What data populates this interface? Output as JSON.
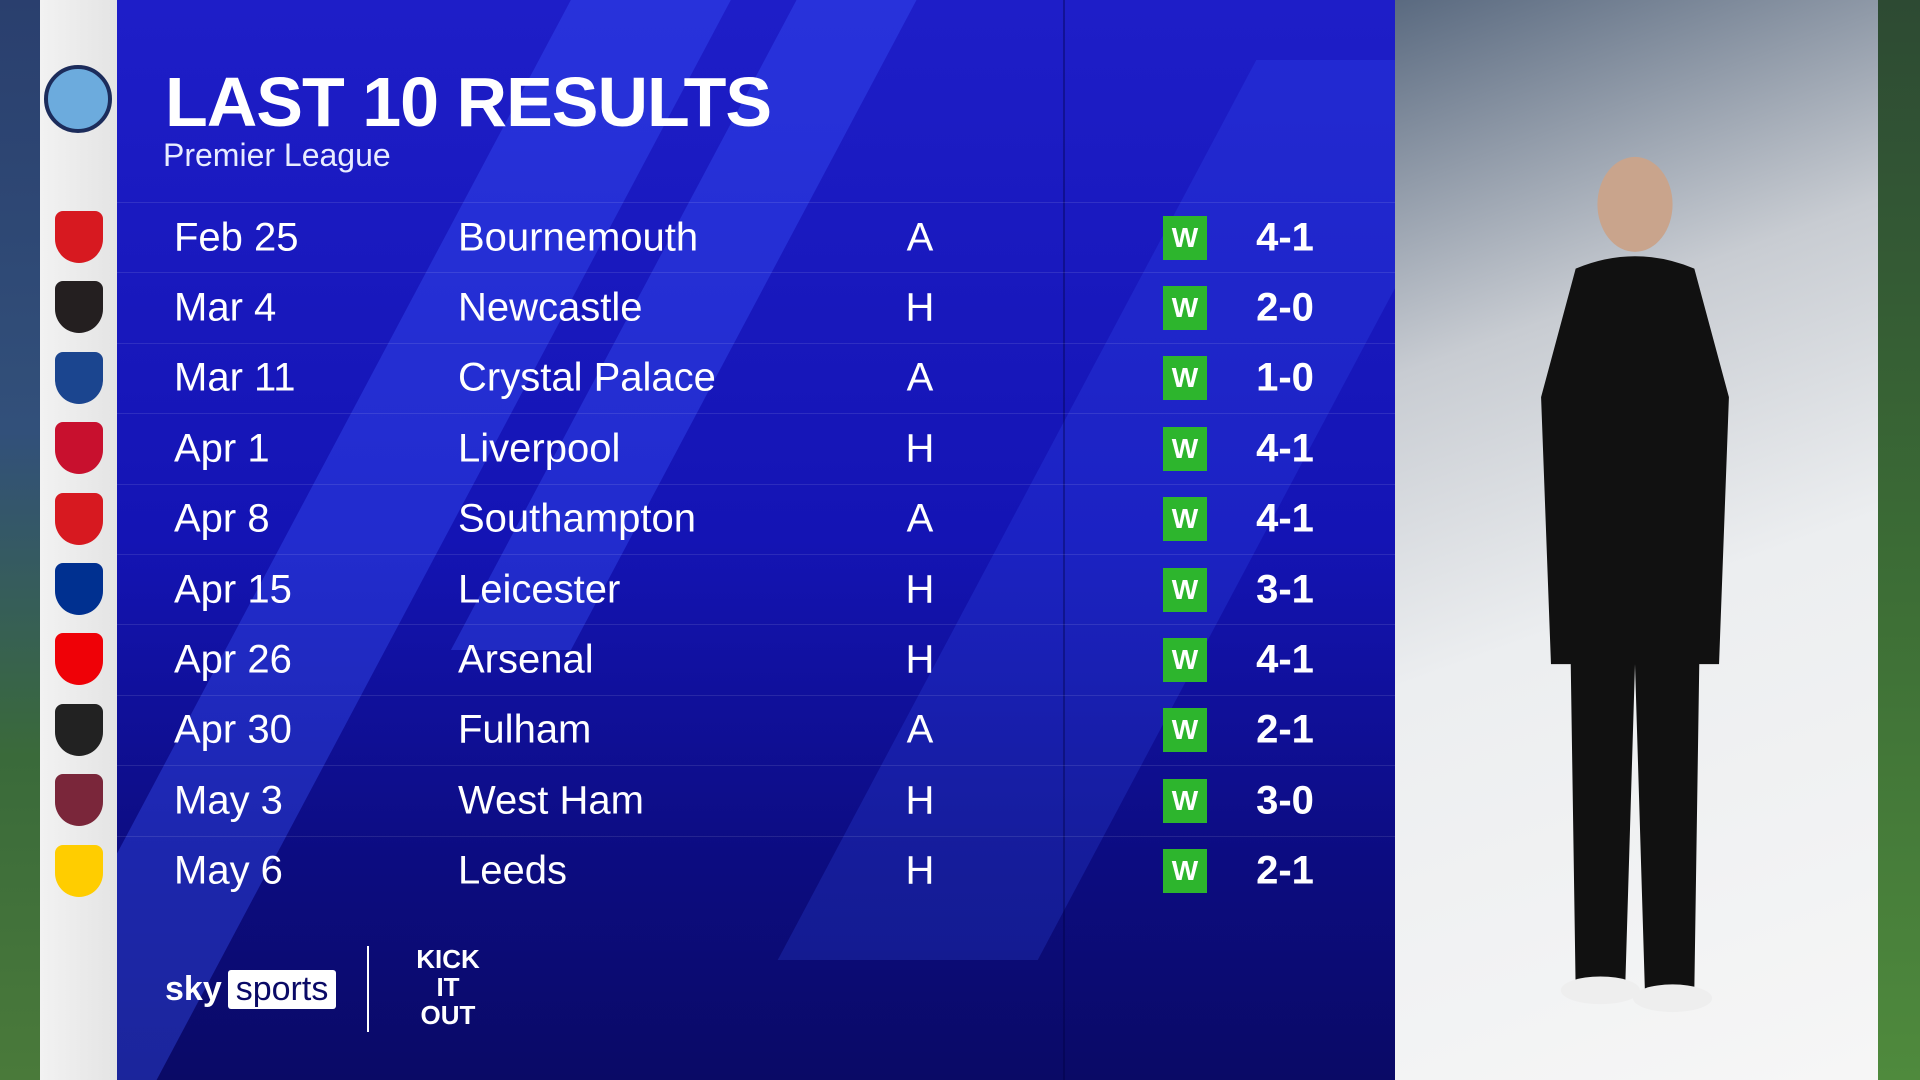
{
  "header": {
    "title": "LAST 10 RESULTS",
    "subtitle": "Premier League"
  },
  "team_crest": "Manchester City",
  "results": [
    {
      "date": "Feb 25",
      "opponent": "Bournemouth",
      "venue": "A",
      "result": "W",
      "score": "4-1",
      "crest_color": "#d71920"
    },
    {
      "date": "Mar 4",
      "opponent": "Newcastle",
      "venue": "H",
      "result": "W",
      "score": "2-0",
      "crest_color": "#241f20"
    },
    {
      "date": "Mar 11",
      "opponent": "Crystal Palace",
      "venue": "A",
      "result": "W",
      "score": "1-0",
      "crest_color": "#1b458f"
    },
    {
      "date": "Apr 1",
      "opponent": "Liverpool",
      "venue": "H",
      "result": "W",
      "score": "4-1",
      "crest_color": "#c8102e"
    },
    {
      "date": "Apr 8",
      "opponent": "Southampton",
      "venue": "A",
      "result": "W",
      "score": "4-1",
      "crest_color": "#d71920"
    },
    {
      "date": "Apr 15",
      "opponent": "Leicester",
      "venue": "H",
      "result": "W",
      "score": "3-1",
      "crest_color": "#003090"
    },
    {
      "date": "Apr 26",
      "opponent": "Arsenal",
      "venue": "H",
      "result": "W",
      "score": "4-1",
      "crest_color": "#ef0107"
    },
    {
      "date": "Apr 30",
      "opponent": "Fulham",
      "venue": "A",
      "result": "W",
      "score": "2-1",
      "crest_color": "#222222"
    },
    {
      "date": "May 3",
      "opponent": "West Ham",
      "venue": "H",
      "result": "W",
      "score": "3-0",
      "crest_color": "#7a263a"
    },
    {
      "date": "May 6",
      "opponent": "Leeds",
      "venue": "H",
      "result": "W",
      "score": "2-1",
      "crest_color": "#ffcd00"
    }
  ],
  "colors": {
    "panel": "#1414b4",
    "win_badge": "#2db52d"
  },
  "footer": {
    "sky": "sky",
    "sports": "sports",
    "kick_it_out": [
      "KICK",
      "IT",
      "OUT"
    ]
  }
}
